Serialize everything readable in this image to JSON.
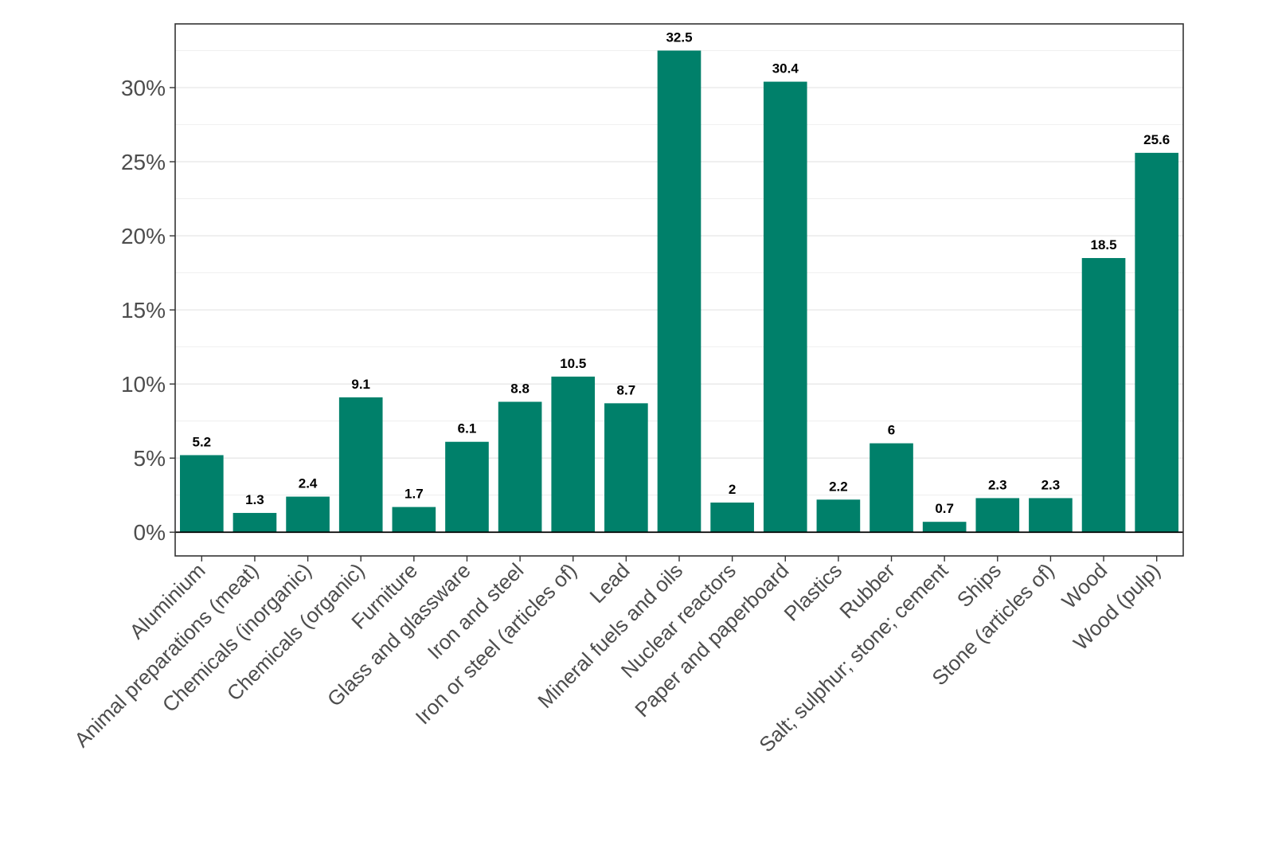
{
  "chart_data": {
    "type": "bar",
    "title": "",
    "xlabel": "",
    "ylabel": "",
    "categories": [
      "Aluminium",
      "Animal preparations (meat)",
      "Chemicals (inorganic)",
      "Chemicals (organic)",
      "Furniture",
      "Glass and glassware",
      "Iron and steel",
      "Iron or steel (articles of)",
      "Lead",
      "Mineral fuels and oils",
      "Nuclear reactors",
      "Paper and paperboard",
      "Plastics",
      "Rubber",
      "Salt; sulphur; stone; cement",
      "Ships",
      "Stone (articles of)",
      "Wood",
      "Wood (pulp)"
    ],
    "values": [
      5.2,
      1.3,
      2.4,
      9.1,
      1.7,
      6.1,
      8.8,
      10.5,
      8.7,
      32.5,
      2,
      30.4,
      2.2,
      6,
      0.7,
      2.3,
      2.3,
      18.5,
      25.6
    ],
    "data_labels": [
      "5.2",
      "1.3",
      "2.4",
      "9.1",
      "1.7",
      "6.1",
      "8.8",
      "10.5",
      "8.7",
      "32.5",
      "2",
      "30.4",
      "2.2",
      "6",
      "0.7",
      "2.3",
      "2.3",
      "18.5",
      "25.6"
    ],
    "ylim": [
      -1.6,
      34.3
    ],
    "yticks": [
      0,
      5,
      10,
      15,
      20,
      25,
      30
    ],
    "ytick_labels": [
      "0%",
      "5%",
      "10%",
      "15%",
      "20%",
      "25%",
      "30%"
    ],
    "grid": true,
    "legend": "none",
    "colors": {
      "bar": "#00806A",
      "grid": "#EBEBEB",
      "axis": "#000000",
      "tick_text": "#4D4D4D"
    }
  }
}
